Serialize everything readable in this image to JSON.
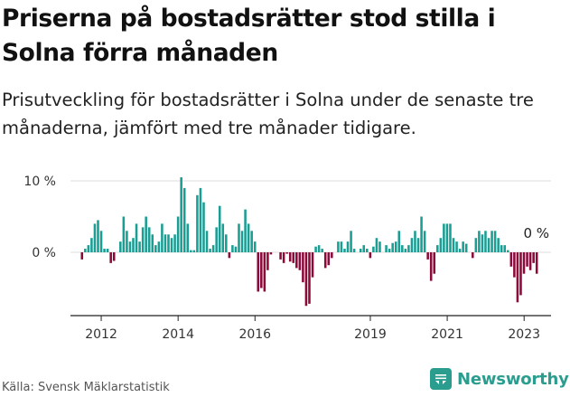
{
  "title": "Priserna på bostadsrätter stod stilla i Solna förra månaden",
  "subtitle": "Prisutveckling för bostadsrätter i Solna under de senaste tre månaderna, jämfört med tre månader tidigare.",
  "source": "Källa: Svensk Mäklarstatistik",
  "brand": "Newsworthy",
  "colors": {
    "positive": "#1a9e93",
    "negative": "#8b0a3a",
    "brand": "#2a9d8f"
  },
  "chart_data": {
    "type": "bar",
    "title": "Priserna på bostadsrätter stod stilla i Solna förra månaden",
    "xlabel": "",
    "ylabel": "",
    "yticks": [
      "10 %",
      "0 %"
    ],
    "ytick_values": [
      10,
      0
    ],
    "ylim": [
      -8.5,
      11
    ],
    "xticks": [
      "2012",
      "2014",
      "2016",
      "2019",
      "2021",
      "2023"
    ],
    "xtick_values": [
      2012.0,
      2014.0,
      2016.0,
      2019.0,
      2021.0,
      2023.0
    ],
    "xlim": [
      2011.2,
      2023.7
    ],
    "series_start": 2011.5,
    "step": 0.0833,
    "last_label": "0 %",
    "grid": true,
    "values": [
      -1,
      0.5,
      1,
      2,
      4,
      4.5,
      3,
      0.5,
      0.5,
      -1.5,
      -1.2,
      0,
      1.5,
      5,
      3,
      1.5,
      2,
      4,
      1.5,
      3.5,
      5,
      3.5,
      2.5,
      1,
      1.5,
      4,
      2.5,
      2.5,
      2,
      2.5,
      5,
      10.5,
      9,
      4,
      0.3,
      0.3,
      8,
      9,
      7,
      3,
      0.5,
      1,
      3.5,
      6.5,
      4,
      2.5,
      -0.8,
      1,
      0.8,
      4,
      3,
      6,
      4,
      3,
      1.5,
      -5.5,
      -5,
      -5.5,
      -2.5,
      -0.3,
      0,
      0,
      -1,
      -1.5,
      -0.2,
      -1.3,
      -1.5,
      -2.2,
      -2.5,
      -4.2,
      -7.5,
      -7.2,
      -3.5,
      0.8,
      1,
      0.5,
      -2.2,
      -1.8,
      -0.8,
      0,
      1.5,
      1.5,
      0.5,
      1.5,
      3,
      0.5,
      0,
      0.5,
      1,
      0.5,
      -0.8,
      0.8,
      2,
      1.5,
      0,
      1,
      0.5,
      1.3,
      1.5,
      3,
      1,
      0.5,
      1,
      2,
      3,
      2,
      5,
      3,
      -1,
      -4,
      -3,
      1,
      2,
      4,
      4,
      4,
      2,
      1.5,
      0.5,
      1.5,
      1.2,
      0,
      -0.8,
      2,
      3,
      2.5,
      3,
      2,
      3,
      3,
      2,
      1,
      1,
      0.3,
      -2,
      -3.5,
      -7,
      -6,
      -3,
      -2,
      -2.5,
      -1.5,
      -3,
      0
    ]
  }
}
